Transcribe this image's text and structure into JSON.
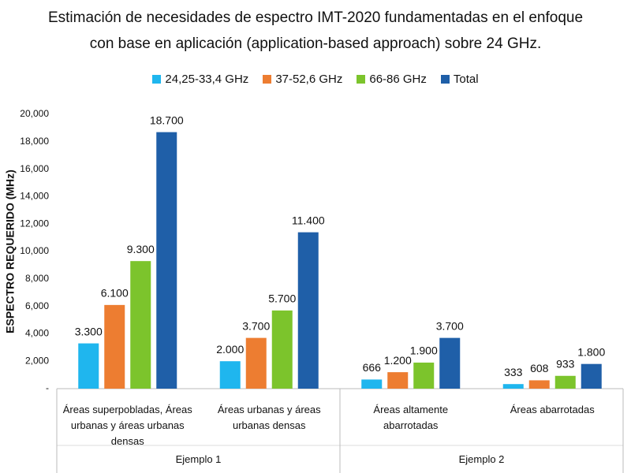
{
  "chart_data": {
    "type": "bar",
    "title": "Estimación de necesidades de espectro IMT-2020 fundamentadas en el enfoque con base en aplicación (application-based approach) sobre 24 GHz.",
    "y_label": "ESPECTRO REQUERIDO (MHz)",
    "groups": [
      {
        "name": "Ejemplo 1",
        "categories": [
          "Áreas superpobladas, Áreas urbanas y áreas urbanas densas",
          "Áreas urbanas y áreas urbanas densas"
        ]
      },
      {
        "name": "Ejemplo 2",
        "categories": [
          "Áreas altamente abarrotadas",
          "Áreas abarrotadas"
        ]
      }
    ],
    "series": [
      {
        "name": "24,25-33,4 GHz",
        "color": "#1fb6ee",
        "values": [
          3300,
          2000,
          666,
          333
        ],
        "value_labels": [
          "3.300",
          "2.000",
          "666",
          "333"
        ]
      },
      {
        "name": "37-52,6 GHz",
        "color": "#ed7d31",
        "values": [
          6100,
          3700,
          1200,
          608
        ],
        "value_labels": [
          "6.100",
          "3.700",
          "1.200",
          "608"
        ]
      },
      {
        "name": "66-86 GHz",
        "color": "#7cc42c",
        "values": [
          9300,
          5700,
          1900,
          933
        ],
        "value_labels": [
          "9.300",
          "5.700",
          "1.900",
          "933"
        ]
      },
      {
        "name": "Total",
        "color": "#1f5fa8",
        "values": [
          18700,
          11400,
          3700,
          1800
        ],
        "value_labels": [
          "18.700",
          "11.400",
          "3.700",
          "1.800"
        ]
      }
    ],
    "ylim": [
      0,
      20000
    ],
    "yticks": [
      {
        "value": 0,
        "label": "-"
      },
      {
        "value": 2000,
        "label": "2,000"
      },
      {
        "value": 4000,
        "label": "4,000"
      },
      {
        "value": 6000,
        "label": "6,000"
      },
      {
        "value": 8000,
        "label": "8,000"
      },
      {
        "value": 10000,
        "label": "10,000"
      },
      {
        "value": 12000,
        "label": "12,000"
      },
      {
        "value": 14000,
        "label": "14,000"
      },
      {
        "value": 16000,
        "label": "16,000"
      },
      {
        "value": 18000,
        "label": "18,000"
      },
      {
        "value": 20000,
        "label": "20,000"
      }
    ],
    "legend": "top"
  }
}
